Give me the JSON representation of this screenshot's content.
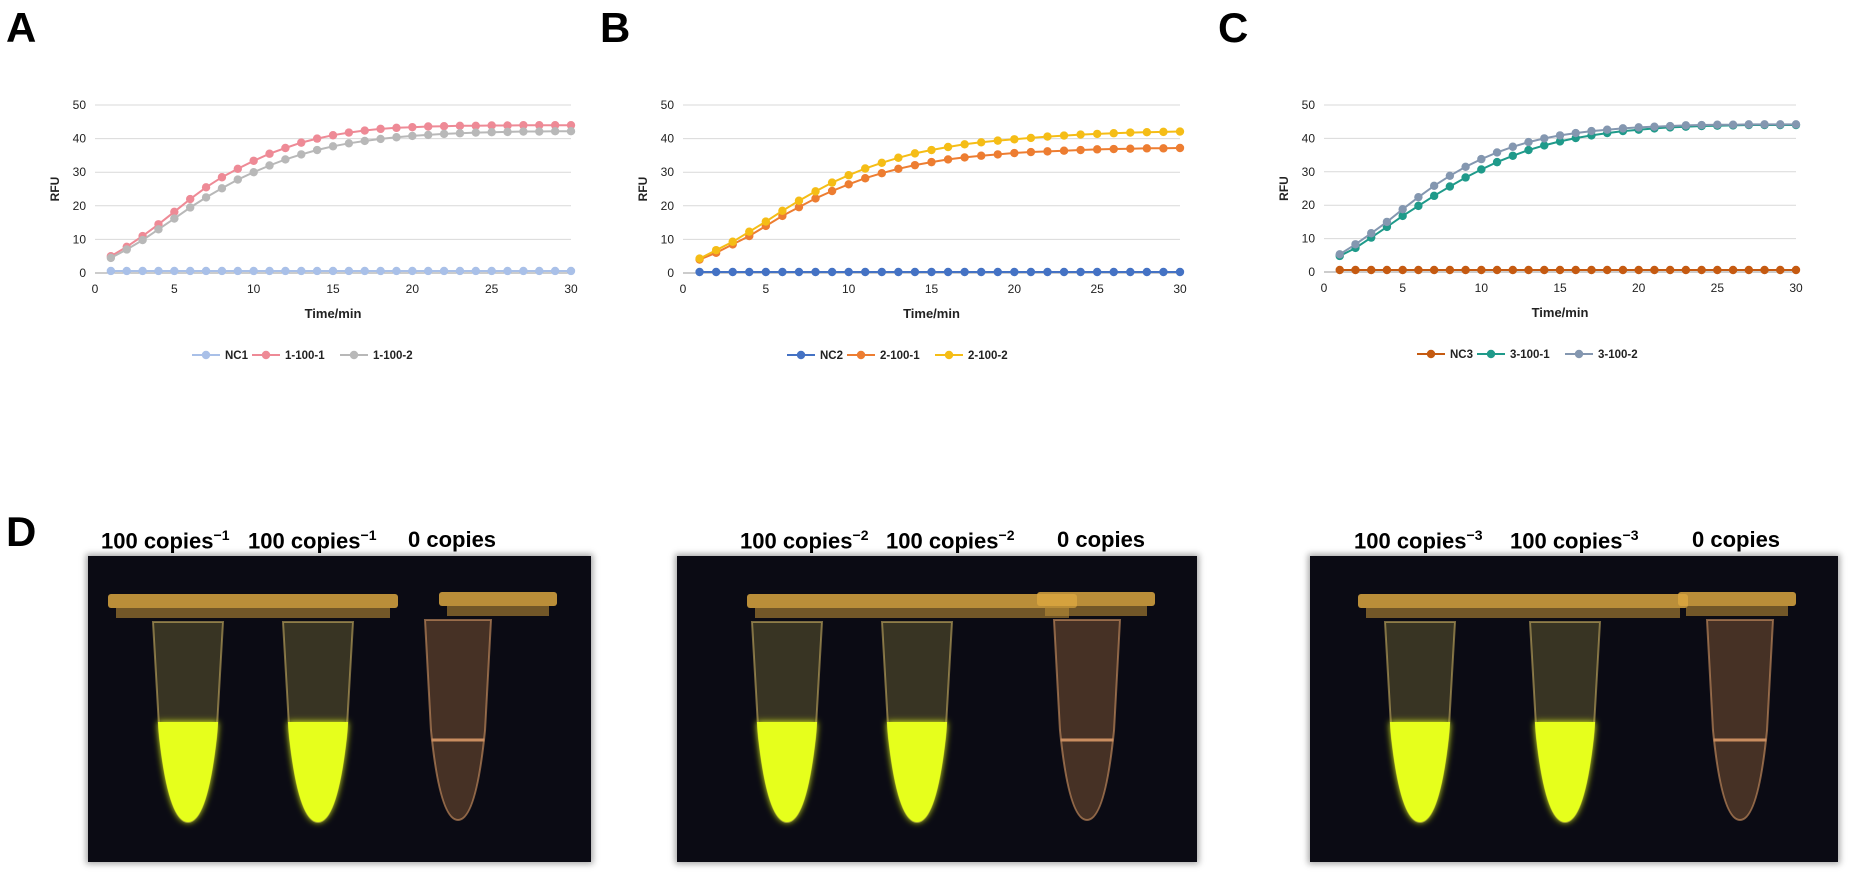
{
  "panel_letters": [
    "A",
    "B",
    "C",
    "D"
  ],
  "chart_data": [
    {
      "type": "line",
      "panel": "A",
      "xlabel": "Time/min",
      "ylabel": "RFU",
      "xlim": [
        0,
        30
      ],
      "ylim": [
        0,
        50
      ],
      "xticks": [
        0,
        5,
        10,
        15,
        20,
        25,
        30
      ],
      "yticks": [
        0,
        10,
        20,
        30,
        40,
        50
      ],
      "legend_position": "bottom",
      "x": [
        1,
        2,
        3,
        4,
        5,
        6,
        7,
        8,
        9,
        10,
        11,
        12,
        13,
        14,
        15,
        16,
        17,
        18,
        19,
        20,
        21,
        22,
        23,
        24,
        25,
        26,
        27,
        28,
        29,
        30
      ],
      "series": [
        {
          "name": "NC1",
          "color": "#a9c0e8",
          "values": [
            0.6,
            0.6,
            0.6,
            0.6,
            0.6,
            0.6,
            0.6,
            0.6,
            0.6,
            0.6,
            0.6,
            0.6,
            0.6,
            0.6,
            0.6,
            0.6,
            0.6,
            0.6,
            0.6,
            0.6,
            0.6,
            0.6,
            0.6,
            0.6,
            0.6,
            0.6,
            0.6,
            0.6,
            0.6,
            0.6
          ]
        },
        {
          "name": "1-100-1",
          "color": "#ee8a96",
          "values": [
            5,
            7.8,
            11,
            14.5,
            18.2,
            22,
            25.5,
            28.5,
            31,
            33.4,
            35.5,
            37.2,
            38.8,
            40,
            41,
            41.8,
            42.4,
            42.9,
            43.2,
            43.4,
            43.6,
            43.7,
            43.8,
            43.8,
            43.9,
            43.9,
            44,
            44,
            44,
            44
          ]
        },
        {
          "name": "1-100-2",
          "color": "#b8b8b8",
          "values": [
            4.5,
            7,
            9.8,
            13,
            16.2,
            19.5,
            22.5,
            25.2,
            27.8,
            30,
            32,
            33.8,
            35.3,
            36.6,
            37.7,
            38.6,
            39.3,
            39.9,
            40.4,
            40.8,
            41.1,
            41.4,
            41.6,
            41.8,
            41.9,
            42,
            42.1,
            42.1,
            42.2,
            42.2
          ]
        }
      ]
    },
    {
      "type": "line",
      "panel": "B",
      "xlabel": "Time/min",
      "ylabel": "RFU",
      "xlim": [
        0,
        30
      ],
      "ylim": [
        0,
        50
      ],
      "xticks": [
        0,
        5,
        10,
        15,
        20,
        25,
        30
      ],
      "yticks": [
        0,
        10,
        20,
        30,
        40,
        50
      ],
      "legend_position": "bottom",
      "x": [
        1,
        2,
        3,
        4,
        5,
        6,
        7,
        8,
        9,
        10,
        11,
        12,
        13,
        14,
        15,
        16,
        17,
        18,
        19,
        20,
        21,
        22,
        23,
        24,
        25,
        26,
        27,
        28,
        29,
        30
      ],
      "series": [
        {
          "name": "NC2",
          "color": "#4472c4",
          "values": [
            0.3,
            0.3,
            0.3,
            0.3,
            0.3,
            0.3,
            0.3,
            0.3,
            0.3,
            0.3,
            0.3,
            0.3,
            0.3,
            0.3,
            0.3,
            0.3,
            0.3,
            0.3,
            0.3,
            0.3,
            0.3,
            0.3,
            0.3,
            0.3,
            0.3,
            0.3,
            0.3,
            0.3,
            0.3,
            0.3
          ]
        },
        {
          "name": "2-100-1",
          "color": "#ed7d31",
          "values": [
            4,
            6,
            8.5,
            11,
            14,
            17,
            19.6,
            22.2,
            24.4,
            26.4,
            28.2,
            29.7,
            31,
            32.1,
            33,
            33.8,
            34.4,
            34.9,
            35.3,
            35.7,
            36,
            36.2,
            36.4,
            36.6,
            36.8,
            36.9,
            37,
            37.1,
            37.1,
            37.2
          ]
        },
        {
          "name": "2-100-2",
          "color": "#f5bd16",
          "values": [
            4.3,
            6.8,
            9.3,
            12.3,
            15.3,
            18.5,
            21.5,
            24.3,
            26.9,
            29.1,
            31.1,
            32.8,
            34.3,
            35.6,
            36.6,
            37.5,
            38.3,
            38.9,
            39.4,
            39.8,
            40.2,
            40.6,
            40.9,
            41.2,
            41.4,
            41.6,
            41.8,
            41.9,
            42,
            42.1
          ]
        }
      ]
    },
    {
      "type": "line",
      "panel": "C",
      "xlabel": "Time/min",
      "ylabel": "RFU",
      "xlim": [
        0,
        30
      ],
      "ylim": [
        0,
        50
      ],
      "xticks": [
        0,
        5,
        10,
        15,
        20,
        25,
        30
      ],
      "yticks": [
        0,
        10,
        20,
        30,
        40,
        50
      ],
      "legend_position": "bottom",
      "x": [
        1,
        2,
        3,
        4,
        5,
        6,
        7,
        8,
        9,
        10,
        11,
        12,
        13,
        14,
        15,
        16,
        17,
        18,
        19,
        20,
        21,
        22,
        23,
        24,
        25,
        26,
        27,
        28,
        29,
        30
      ],
      "series": [
        {
          "name": "NC3",
          "color": "#c55a11",
          "values": [
            0.6,
            0.6,
            0.6,
            0.6,
            0.6,
            0.6,
            0.6,
            0.6,
            0.6,
            0.6,
            0.6,
            0.6,
            0.6,
            0.6,
            0.6,
            0.6,
            0.6,
            0.6,
            0.6,
            0.6,
            0.6,
            0.6,
            0.6,
            0.6,
            0.6,
            0.6,
            0.6,
            0.6,
            0.6,
            0.6
          ]
        },
        {
          "name": "3-100-1",
          "color": "#1f9a8a",
          "values": [
            4.8,
            7.2,
            10.3,
            13.5,
            16.8,
            19.8,
            22.8,
            25.6,
            28.3,
            30.7,
            32.9,
            34.8,
            36.5,
            37.9,
            39.1,
            40.1,
            40.9,
            41.6,
            42.2,
            42.6,
            43,
            43.3,
            43.5,
            43.7,
            43.8,
            43.9,
            44,
            44,
            44,
            44
          ]
        },
        {
          "name": "3-100-2",
          "color": "#8497b0",
          "values": [
            5.3,
            8.3,
            11.6,
            15,
            18.8,
            22.4,
            25.8,
            28.8,
            31.5,
            33.8,
            35.8,
            37.5,
            38.9,
            40,
            40.9,
            41.6,
            42.2,
            42.6,
            43,
            43.3,
            43.5,
            43.7,
            43.9,
            44,
            44.1,
            44.1,
            44.2,
            44.2,
            44.2,
            44.2
          ]
        }
      ]
    }
  ],
  "photos": [
    {
      "labels": [
        {
          "base": "100 copies",
          "sup": "−1"
        },
        {
          "base": "100 copies",
          "sup": "−1"
        },
        {
          "base": "0 copies",
          "sup": ""
        }
      ]
    },
    {
      "labels": [
        {
          "base": "100 copies",
          "sup": "−2"
        },
        {
          "base": "100 copies",
          "sup": "−2"
        },
        {
          "base": "0 copies",
          "sup": ""
        }
      ]
    },
    {
      "labels": [
        {
          "base": "100 copies",
          "sup": "−3"
        },
        {
          "base": "100 copies",
          "sup": "−3"
        },
        {
          "base": "0 copies",
          "sup": ""
        }
      ]
    }
  ],
  "colors": {
    "fluorescent": "#e6ff1a",
    "tube_negative": "#c98d60",
    "cap": "#d9a640",
    "photo_background": "#0b0b14"
  }
}
